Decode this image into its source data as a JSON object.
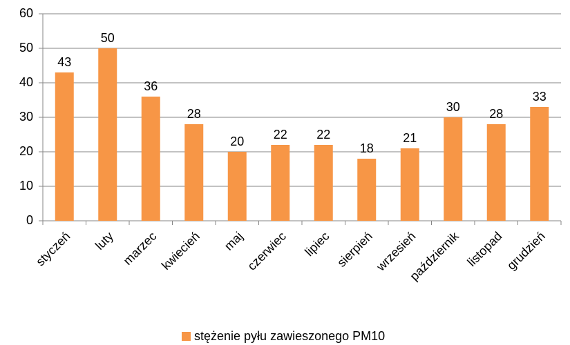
{
  "chart_data": {
    "type": "bar",
    "categories": [
      "styczeń",
      "luty",
      "marzec",
      "kwiecień",
      "maj",
      "czerwiec",
      "lipiec",
      "sierpień",
      "wrzesień",
      "październik",
      "listopad",
      "grudzień"
    ],
    "series": [
      {
        "name": "stężenie pyłu zawieszonego PM10",
        "color": "#f79646",
        "values": [
          43,
          50,
          36,
          28,
          20,
          22,
          22,
          18,
          21,
          30,
          28,
          33
        ]
      }
    ],
    "ylim": [
      0,
      60
    ],
    "yticks": [
      0,
      10,
      20,
      30,
      40,
      50,
      60
    ],
    "grid": true,
    "legend": "bottom",
    "data_labels": true
  }
}
